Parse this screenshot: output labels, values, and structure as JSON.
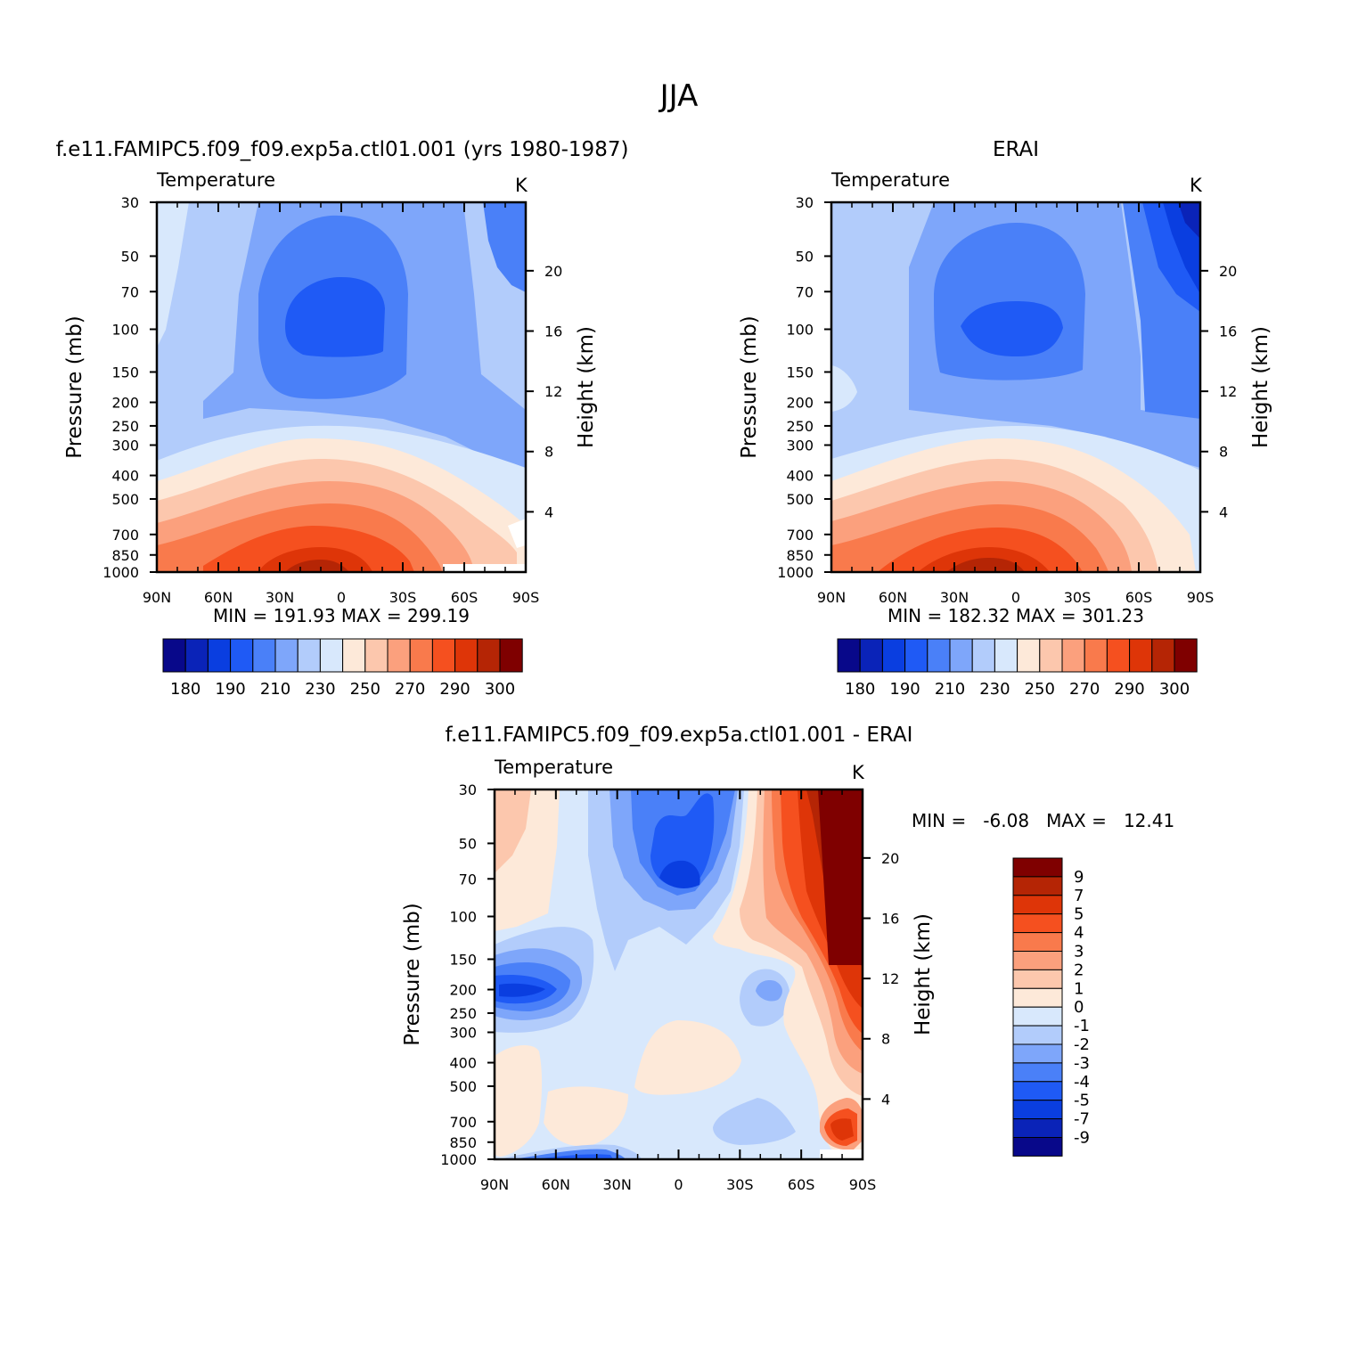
{
  "figure": {
    "title": "JJA",
    "panel_titles": [
      "f.e11.FAMIPC5.f09_f09.exp5a.ctl01.001 (yrs 1980-1987)",
      "ERAI",
      "f.e11.FAMIPC5.f09_f09.exp5a.ctl01.001 - ERAI"
    ],
    "variable_label": "Temperature",
    "units_label": "K",
    "ylabel_left": "Pressure (mb)",
    "ylabel_right": "Height (km)",
    "x_tick_labels": [
      "90N",
      "60N",
      "30N",
      "0",
      "30S",
      "60S",
      "90S"
    ],
    "y_tick_labels": [
      "30",
      "50",
      "70",
      "100",
      "150",
      "200",
      "250",
      "300",
      "400",
      "500",
      "700",
      "850",
      "1000"
    ],
    "height_tick_labels": [
      "20",
      "16",
      "12",
      "8",
      "4"
    ],
    "minmax_text": [
      "MIN = 191.93   MAX = 299.19",
      "MIN = 182.32   MAX = 301.23",
      "MIN =   -6.08   MAX =   12.41"
    ]
  },
  "colors": {
    "temperature_palette": [
      "#08088a",
      "#0a23b8",
      "#0a3ee0",
      "#1f5af5",
      "#4a80f8",
      "#7ea6fa",
      "#b2ccfb",
      "#d8e8fc",
      "#fde9d9",
      "#fcc7ad",
      "#fba07d",
      "#f97a4c",
      "#f5501f",
      "#de3508",
      "#b52505",
      "#7f0000"
    ],
    "difference_palette": [
      "#7f0000",
      "#b52505",
      "#de3508",
      "#f5501f",
      "#f97a4c",
      "#fba07d",
      "#fcc7ad",
      "#fde9d9",
      "#d8e8fc",
      "#b2ccfb",
      "#7ea6fa",
      "#4a80f8",
      "#1f5af5",
      "#0a3ee0",
      "#0a23b8",
      "#08088a"
    ]
  },
  "chart_data": [
    {
      "type": "heatmap",
      "title": "f.e11.FAMIPC5.f09_f09.exp5a.ctl01.001 (yrs 1980-1987)",
      "variable": "Temperature",
      "units": "K",
      "xlabel": "",
      "ylabel": "Pressure (mb)",
      "ylabel_right": "Height (km)",
      "x_range": [
        "90N",
        "90S"
      ],
      "y_range_mb": [
        30,
        1000
      ],
      "y_scale": "log",
      "contour_levels": [
        180,
        190,
        210,
        230,
        250,
        270,
        290,
        300
      ],
      "min": 191.93,
      "max": 299.19,
      "colorbar_labels": [
        "180",
        "190",
        "210",
        "230",
        "250",
        "270",
        "290",
        "300"
      ],
      "colorbar_position": "bottom"
    },
    {
      "type": "heatmap",
      "title": "ERAI",
      "variable": "Temperature",
      "units": "K",
      "xlabel": "",
      "ylabel": "Pressure (mb)",
      "ylabel_right": "Height (km)",
      "x_range": [
        "90N",
        "90S"
      ],
      "y_range_mb": [
        30,
        1000
      ],
      "y_scale": "log",
      "contour_levels": [
        180,
        190,
        210,
        230,
        250,
        270,
        290,
        300
      ],
      "min": 182.32,
      "max": 301.23,
      "colorbar_labels": [
        "180",
        "190",
        "210",
        "230",
        "250",
        "270",
        "290",
        "300"
      ],
      "colorbar_position": "bottom"
    },
    {
      "type": "heatmap",
      "title": "f.e11.FAMIPC5.f09_f09.exp5a.ctl01.001 - ERAI",
      "variable": "Temperature",
      "units": "K",
      "xlabel": "",
      "ylabel": "Pressure (mb)",
      "ylabel_right": "Height (km)",
      "x_range": [
        "90N",
        "90S"
      ],
      "y_range_mb": [
        30,
        1000
      ],
      "y_scale": "log",
      "min": -6.08,
      "max": 12.41,
      "colorbar_labels": [
        "9",
        "7",
        "5",
        "4",
        "3",
        "2",
        "1",
        "0",
        "-1",
        "-2",
        "-3",
        "-4",
        "-5",
        "-7",
        "-9"
      ],
      "colorbar_position": "right"
    }
  ]
}
